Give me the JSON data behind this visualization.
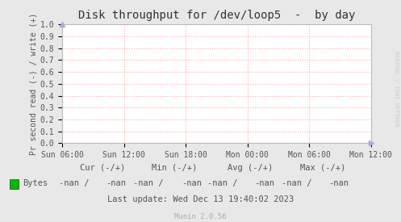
{
  "title": "Disk throughput for /dev/loop5  -  by day",
  "ylabel": "Pr second read (-) / write (+)",
  "background_color": "#e8e8e8",
  "plot_bg_color": "#ffffff",
  "grid_color": "#ffaaaa",
  "ylim": [
    0.0,
    1.0
  ],
  "yticks": [
    0.0,
    0.1,
    0.2,
    0.3,
    0.4,
    0.5,
    0.6,
    0.7,
    0.8,
    0.9,
    1.0
  ],
  "xtick_labels": [
    "Sun 06:00",
    "Sun 12:00",
    "Sun 18:00",
    "Mon 00:00",
    "Mon 06:00",
    "Mon 12:00"
  ],
  "legend_label": "Bytes",
  "legend_color": "#00bb00",
  "cur_label": "Cur (-/+)",
  "min_label": "Min (-/+)",
  "avg_label": "Avg (-/+)",
  "max_label": "Max (-/+)",
  "cur_val": "-nan /   -nan",
  "min_val": "-nan /   -nan",
  "avg_val": "-nan /   -nan",
  "max_val": "-nan /   -nan",
  "last_update": "Last update: Wed Dec 13 19:40:02 2023",
  "munin_version": "Munin 2.0.56",
  "rrdtool_text": "RRDTOOL / TOBI OETIKER",
  "title_fontsize": 10,
  "axis_fontsize": 7,
  "tick_fontsize": 7,
  "footer_fontsize": 7.5
}
